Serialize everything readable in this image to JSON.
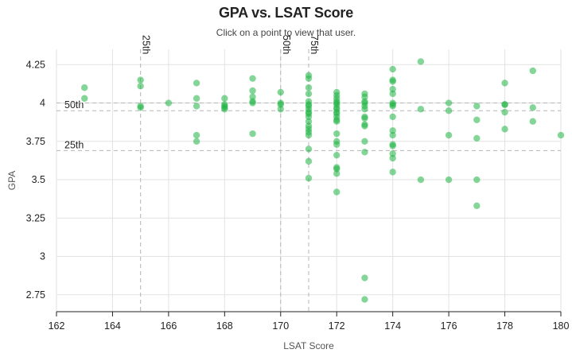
{
  "header": {
    "title": "GPA vs. LSAT Score",
    "subtitle": "Click on a point to view that user."
  },
  "colors": {
    "point": "#1fb544",
    "grid": "#e2e2e2",
    "reference_line": "#b5b5b5",
    "axis": "#222222"
  },
  "chart_data": {
    "type": "scatter",
    "title": "GPA vs. LSAT Score",
    "subtitle": "Click on a point to view that user.",
    "xlabel": "LSAT Score",
    "ylabel": "GPA",
    "xlim": [
      162,
      180
    ],
    "ylim": [
      2.64,
      4.35
    ],
    "grid": true,
    "x_ticks": [
      162,
      164,
      166,
      168,
      170,
      172,
      174,
      176,
      178,
      180
    ],
    "y_ticks": [
      2.75,
      3,
      3.25,
      3.5,
      3.75,
      4,
      4.25
    ],
    "y_tick_labels": [
      "2.75",
      "3",
      "3.25",
      "3.5",
      "3.75",
      "4",
      "4.25"
    ],
    "reference_lines": {
      "lsat": [
        {
          "label": "25th",
          "value": 165
        },
        {
          "label": "50th",
          "value": 170
        },
        {
          "label": "75th",
          "value": 171
        }
      ],
      "gpa": [
        {
          "label": "25th",
          "value": 3.69
        },
        {
          "label": "50th",
          "value": 3.95
        },
        {
          "label": "",
          "value": 4.0
        }
      ]
    },
    "points": [
      {
        "x": 163,
        "y": 4.1
      },
      {
        "x": 163,
        "y": 4.03
      },
      {
        "x": 165,
        "y": 4.15
      },
      {
        "x": 165,
        "y": 4.11
      },
      {
        "x": 165,
        "y": 3.98
      },
      {
        "x": 165,
        "y": 3.97
      },
      {
        "x": 166,
        "y": 4.0
      },
      {
        "x": 167,
        "y": 4.13
      },
      {
        "x": 167,
        "y": 4.03
      },
      {
        "x": 167,
        "y": 3.98
      },
      {
        "x": 167,
        "y": 3.79
      },
      {
        "x": 167,
        "y": 3.75
      },
      {
        "x": 168,
        "y": 4.03
      },
      {
        "x": 168,
        "y": 3.99
      },
      {
        "x": 168,
        "y": 3.98
      },
      {
        "x": 168,
        "y": 3.97
      },
      {
        "x": 168,
        "y": 3.96
      },
      {
        "x": 169,
        "y": 4.16
      },
      {
        "x": 169,
        "y": 4.08
      },
      {
        "x": 169,
        "y": 4.04
      },
      {
        "x": 169,
        "y": 4.01
      },
      {
        "x": 169,
        "y": 4.0
      },
      {
        "x": 169,
        "y": 3.8
      },
      {
        "x": 170,
        "y": 4.07
      },
      {
        "x": 170,
        "y": 4.0
      },
      {
        "x": 170,
        "y": 3.99
      },
      {
        "x": 170,
        "y": 3.96
      },
      {
        "x": 171,
        "y": 4.18
      },
      {
        "x": 171,
        "y": 4.16
      },
      {
        "x": 171,
        "y": 4.1
      },
      {
        "x": 171,
        "y": 4.06
      },
      {
        "x": 171,
        "y": 4.01
      },
      {
        "x": 171,
        "y": 3.99
      },
      {
        "x": 171,
        "y": 3.98
      },
      {
        "x": 171,
        "y": 3.96
      },
      {
        "x": 171,
        "y": 3.94
      },
      {
        "x": 171,
        "y": 3.93
      },
      {
        "x": 171,
        "y": 3.91
      },
      {
        "x": 171,
        "y": 3.88
      },
      {
        "x": 171,
        "y": 3.85
      },
      {
        "x": 171,
        "y": 3.83
      },
      {
        "x": 171,
        "y": 3.81
      },
      {
        "x": 171,
        "y": 3.79
      },
      {
        "x": 171,
        "y": 3.7
      },
      {
        "x": 171,
        "y": 3.62
      },
      {
        "x": 171,
        "y": 3.51
      },
      {
        "x": 172,
        "y": 4.07
      },
      {
        "x": 172,
        "y": 4.05
      },
      {
        "x": 172,
        "y": 4.03
      },
      {
        "x": 172,
        "y": 4.01
      },
      {
        "x": 172,
        "y": 4.0
      },
      {
        "x": 172,
        "y": 3.99
      },
      {
        "x": 172,
        "y": 3.97
      },
      {
        "x": 172,
        "y": 3.96
      },
      {
        "x": 172,
        "y": 3.94
      },
      {
        "x": 172,
        "y": 3.93
      },
      {
        "x": 172,
        "y": 3.91
      },
      {
        "x": 172,
        "y": 3.89
      },
      {
        "x": 172,
        "y": 3.88
      },
      {
        "x": 172,
        "y": 3.8
      },
      {
        "x": 172,
        "y": 3.75
      },
      {
        "x": 172,
        "y": 3.73
      },
      {
        "x": 172,
        "y": 3.66
      },
      {
        "x": 172,
        "y": 3.58
      },
      {
        "x": 172,
        "y": 3.57
      },
      {
        "x": 172,
        "y": 3.54
      },
      {
        "x": 172,
        "y": 3.42
      },
      {
        "x": 173,
        "y": 4.06
      },
      {
        "x": 173,
        "y": 4.04
      },
      {
        "x": 173,
        "y": 4.01
      },
      {
        "x": 173,
        "y": 4.0
      },
      {
        "x": 173,
        "y": 3.98
      },
      {
        "x": 173,
        "y": 3.96
      },
      {
        "x": 173,
        "y": 3.91
      },
      {
        "x": 173,
        "y": 3.9
      },
      {
        "x": 173,
        "y": 3.86
      },
      {
        "x": 173,
        "y": 3.85
      },
      {
        "x": 173,
        "y": 3.75
      },
      {
        "x": 173,
        "y": 3.68
      },
      {
        "x": 173,
        "y": 2.86
      },
      {
        "x": 173,
        "y": 2.72
      },
      {
        "x": 174,
        "y": 4.22
      },
      {
        "x": 174,
        "y": 4.15
      },
      {
        "x": 174,
        "y": 4.14
      },
      {
        "x": 174,
        "y": 4.09
      },
      {
        "x": 174,
        "y": 4.06
      },
      {
        "x": 174,
        "y": 4.0
      },
      {
        "x": 174,
        "y": 3.99
      },
      {
        "x": 174,
        "y": 3.98
      },
      {
        "x": 174,
        "y": 3.91
      },
      {
        "x": 174,
        "y": 3.82
      },
      {
        "x": 174,
        "y": 3.79
      },
      {
        "x": 174,
        "y": 3.73
      },
      {
        "x": 174,
        "y": 3.72
      },
      {
        "x": 174,
        "y": 3.67
      },
      {
        "x": 174,
        "y": 3.64
      },
      {
        "x": 174,
        "y": 3.55
      },
      {
        "x": 175,
        "y": 4.27
      },
      {
        "x": 175,
        "y": 3.96
      },
      {
        "x": 175,
        "y": 3.5
      },
      {
        "x": 176,
        "y": 4.0
      },
      {
        "x": 176,
        "y": 3.95
      },
      {
        "x": 176,
        "y": 3.79
      },
      {
        "x": 176,
        "y": 3.5
      },
      {
        "x": 177,
        "y": 3.98
      },
      {
        "x": 177,
        "y": 3.89
      },
      {
        "x": 177,
        "y": 3.77
      },
      {
        "x": 177,
        "y": 3.5
      },
      {
        "x": 177,
        "y": 3.33
      },
      {
        "x": 178,
        "y": 4.13
      },
      {
        "x": 178,
        "y": 3.99
      },
      {
        "x": 178,
        "y": 3.99
      },
      {
        "x": 178,
        "y": 3.94
      },
      {
        "x": 178,
        "y": 3.83
      },
      {
        "x": 179,
        "y": 4.21
      },
      {
        "x": 179,
        "y": 3.97
      },
      {
        "x": 179,
        "y": 3.88
      },
      {
        "x": 180,
        "y": 3.79
      }
    ]
  }
}
